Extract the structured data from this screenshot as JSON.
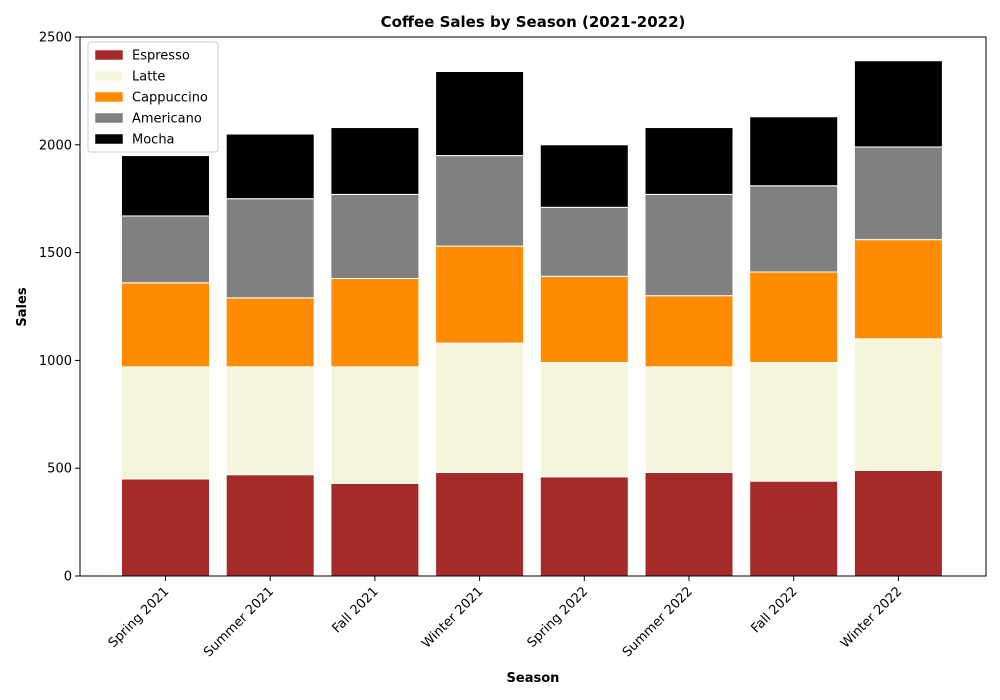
{
  "chart_data": {
    "type": "bar",
    "stacked": true,
    "title": "Coffee Sales by Season (2021-2022)",
    "xlabel": "Season",
    "ylabel": "Sales",
    "ylim": [
      0,
      2500
    ],
    "yticks": [
      0,
      500,
      1000,
      1500,
      2000,
      2500
    ],
    "grid": false,
    "legend_position": "top-left",
    "categories": [
      "Spring 2021",
      "Summer 2021",
      "Fall 2021",
      "Winter 2021",
      "Spring 2022",
      "Summer 2022",
      "Fall 2022",
      "Winter 2022"
    ],
    "series": [
      {
        "name": "Espresso",
        "color": "#a52a2a",
        "values": [
          450,
          470,
          430,
          480,
          460,
          480,
          440,
          490
        ]
      },
      {
        "name": "Latte",
        "color": "#f5f5dc",
        "values": [
          520,
          500,
          540,
          600,
          530,
          490,
          550,
          610
        ]
      },
      {
        "name": "Cappuccino",
        "color": "#ff8c00",
        "values": [
          390,
          320,
          410,
          450,
          400,
          330,
          420,
          460
        ]
      },
      {
        "name": "Americano",
        "color": "#808080",
        "values": [
          310,
          460,
          390,
          420,
          320,
          470,
          400,
          430
        ]
      },
      {
        "name": "Mocha",
        "color": "#000000",
        "values": [
          280,
          300,
          310,
          390,
          290,
          310,
          320,
          400
        ]
      }
    ]
  }
}
